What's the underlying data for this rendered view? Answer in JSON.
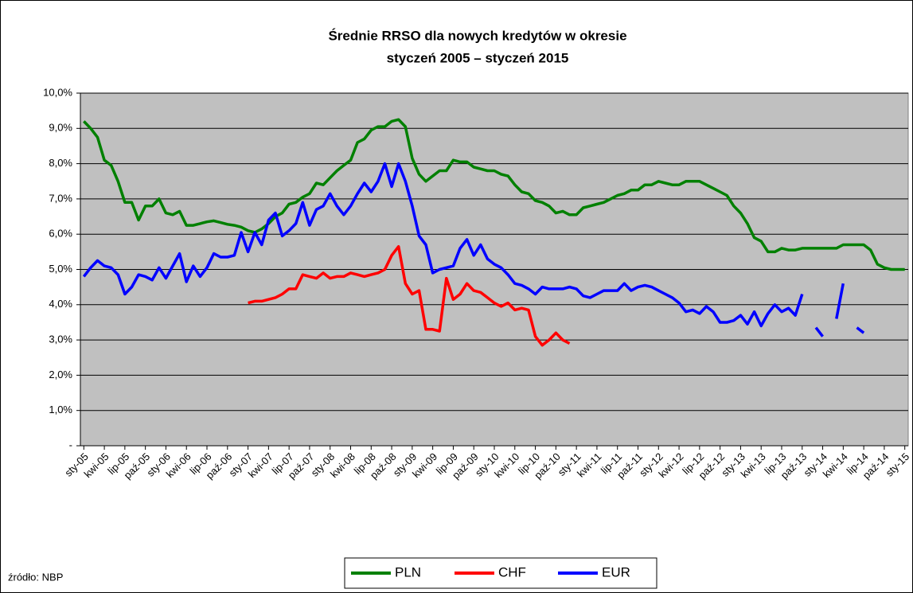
{
  "chart_data": {
    "type": "line",
    "title": "Średnie RRSO dla nowych kredytów w okresie",
    "subtitle": "styczeń 2005 – styczeń 2015",
    "source": "źródło: NBP",
    "categories": [
      "sty-05",
      null,
      null,
      "kwi-05",
      null,
      null,
      "lip-05",
      null,
      null,
      "paź-05",
      null,
      null,
      "sty-06",
      null,
      null,
      "kwi-06",
      null,
      null,
      "lip-06",
      null,
      null,
      "paź-06",
      null,
      null,
      "sty-07",
      null,
      null,
      "kwi-07",
      null,
      null,
      "lip-07",
      null,
      null,
      "paź-07",
      null,
      null,
      "sty-08",
      null,
      null,
      "kwi-08",
      null,
      null,
      "lip-08",
      null,
      null,
      "paź-08",
      null,
      null,
      "sty-09",
      null,
      null,
      "kwi-09",
      null,
      null,
      "lip-09",
      null,
      null,
      "paź-09",
      null,
      null,
      "sty-10",
      null,
      null,
      "kwi-10",
      null,
      null,
      "lip-10",
      null,
      null,
      "paź-10",
      null,
      null,
      "sty-11",
      null,
      null,
      "kwi-11",
      null,
      null,
      "lip-11",
      null,
      null,
      "paź-11",
      null,
      null,
      "sty-12",
      null,
      null,
      "kwi-12",
      null,
      null,
      "lip-12",
      null,
      null,
      "paź-12",
      null,
      null,
      "sty-13",
      null,
      null,
      "kwi-13",
      null,
      null,
      "lip-13",
      null,
      null,
      "paź-13",
      null,
      null,
      "sty-14",
      null,
      null,
      "kwi-14",
      null,
      null,
      "lip-14",
      null,
      null,
      "paź-14",
      null,
      null,
      "sty-15"
    ],
    "series": [
      {
        "name": "PLN",
        "color": "#008000",
        "values": [
          9.2,
          9.0,
          8.75,
          8.1,
          7.95,
          7.5,
          6.9,
          6.9,
          6.4,
          6.8,
          6.8,
          7.0,
          6.6,
          6.55,
          6.65,
          6.25,
          6.25,
          6.3,
          6.35,
          6.38,
          6.33,
          6.28,
          6.25,
          6.2,
          6.1,
          6.05,
          6.15,
          6.3,
          6.5,
          6.6,
          6.85,
          6.9,
          7.05,
          7.15,
          7.45,
          7.4,
          7.6,
          7.8,
          7.95,
          8.1,
          8.6,
          8.7,
          8.95,
          9.05,
          9.05,
          9.2,
          9.25,
          9.05,
          8.15,
          7.7,
          7.5,
          7.65,
          7.8,
          7.8,
          8.1,
          8.05,
          8.05,
          7.9,
          7.85,
          7.8,
          7.8,
          7.7,
          7.65,
          7.4,
          7.2,
          7.15,
          6.95,
          6.9,
          6.8,
          6.6,
          6.65,
          6.55,
          6.55,
          6.75,
          6.8,
          6.85,
          6.9,
          7.0,
          7.1,
          7.15,
          7.25,
          7.25,
          7.4,
          7.4,
          7.5,
          7.45,
          7.4,
          7.4,
          7.5,
          7.5,
          7.5,
          7.4,
          7.3,
          7.2,
          7.1,
          6.8,
          6.6,
          6.3,
          5.9,
          5.8,
          5.5,
          5.5,
          5.6,
          5.55,
          5.55,
          5.6,
          5.6,
          5.6,
          5.6,
          5.6,
          5.6,
          5.7,
          5.7,
          5.7,
          5.7,
          5.55,
          5.15,
          5.05,
          5.0,
          5.0,
          5.0
        ]
      },
      {
        "name": "CHF",
        "color": "#ff0000",
        "values": [
          null,
          null,
          null,
          null,
          null,
          null,
          null,
          null,
          null,
          null,
          null,
          null,
          null,
          null,
          null,
          null,
          null,
          null,
          null,
          null,
          null,
          null,
          null,
          null,
          4.05,
          4.1,
          4.1,
          4.15,
          4.2,
          4.3,
          4.45,
          4.45,
          4.85,
          4.8,
          4.75,
          4.9,
          4.75,
          4.8,
          4.8,
          4.9,
          4.85,
          4.8,
          4.85,
          4.9,
          5.0,
          5.4,
          5.65,
          4.6,
          4.3,
          4.4,
          3.3,
          3.3,
          3.25,
          4.75,
          4.15,
          4.3,
          4.6,
          4.4,
          4.35,
          4.2,
          4.05,
          3.95,
          4.05,
          3.85,
          3.9,
          3.85,
          3.1,
          2.85,
          3.0,
          3.2,
          3.0,
          2.9,
          null,
          null,
          null,
          null,
          null,
          null,
          null,
          null,
          null,
          null,
          null,
          null,
          null,
          null,
          null,
          null,
          null,
          null,
          null,
          null,
          null,
          null,
          null,
          null,
          null,
          null,
          null,
          null,
          null,
          null,
          null,
          null,
          null,
          null,
          null,
          null,
          null,
          null,
          null,
          null,
          null,
          null,
          null,
          null,
          null,
          null,
          null,
          null,
          null
        ]
      },
      {
        "name": "EUR",
        "color": "#0000ff",
        "values": [
          4.8,
          5.05,
          5.25,
          5.1,
          5.05,
          4.85,
          4.3,
          4.5,
          4.85,
          4.8,
          4.7,
          5.05,
          4.75,
          5.1,
          5.45,
          4.65,
          5.1,
          4.8,
          5.05,
          5.45,
          5.35,
          5.35,
          5.4,
          6.05,
          5.5,
          6.05,
          5.7,
          6.4,
          6.6,
          5.95,
          6.1,
          6.3,
          6.9,
          6.25,
          6.7,
          6.8,
          7.15,
          6.8,
          6.55,
          6.8,
          7.15,
          7.45,
          7.2,
          7.5,
          8.0,
          7.35,
          8.0,
          7.5,
          6.8,
          5.95,
          5.7,
          4.9,
          5.0,
          5.05,
          5.1,
          5.6,
          5.85,
          5.4,
          5.7,
          5.3,
          5.15,
          5.05,
          4.85,
          4.6,
          4.55,
          4.45,
          4.3,
          4.5,
          4.45,
          4.45,
          4.45,
          4.5,
          4.45,
          4.25,
          4.2,
          4.3,
          4.4,
          4.4,
          4.4,
          4.6,
          4.4,
          4.5,
          4.55,
          4.5,
          4.4,
          4.3,
          4.2,
          4.05,
          3.8,
          3.85,
          3.75,
          3.95,
          3.8,
          3.5,
          3.5,
          3.55,
          3.7,
          3.45,
          3.8,
          3.4,
          3.75,
          4.0,
          3.8,
          3.9,
          3.7,
          4.3,
          null,
          3.35,
          3.1,
          null,
          3.6,
          4.6,
          null,
          3.35,
          3.2,
          null,
          null,
          null,
          null,
          null,
          null
        ]
      }
    ],
    "ylim": [
      0,
      10
    ],
    "yticks": [
      {
        "value": 0,
        "label": "-"
      },
      {
        "value": 1,
        "label": "1,0%"
      },
      {
        "value": 2,
        "label": "2,0%"
      },
      {
        "value": 3,
        "label": "3,0%"
      },
      {
        "value": 4,
        "label": "4,0%"
      },
      {
        "value": 5,
        "label": "5,0%"
      },
      {
        "value": 6,
        "label": "6,0%"
      },
      {
        "value": 7,
        "label": "7,0%"
      },
      {
        "value": 8,
        "label": "8,0%"
      },
      {
        "value": 9,
        "label": "9,0%"
      },
      {
        "value": 10,
        "label": "10,0%"
      }
    ],
    "grid": true,
    "plot_background": "#c0c0c0",
    "legend": "bottom"
  }
}
